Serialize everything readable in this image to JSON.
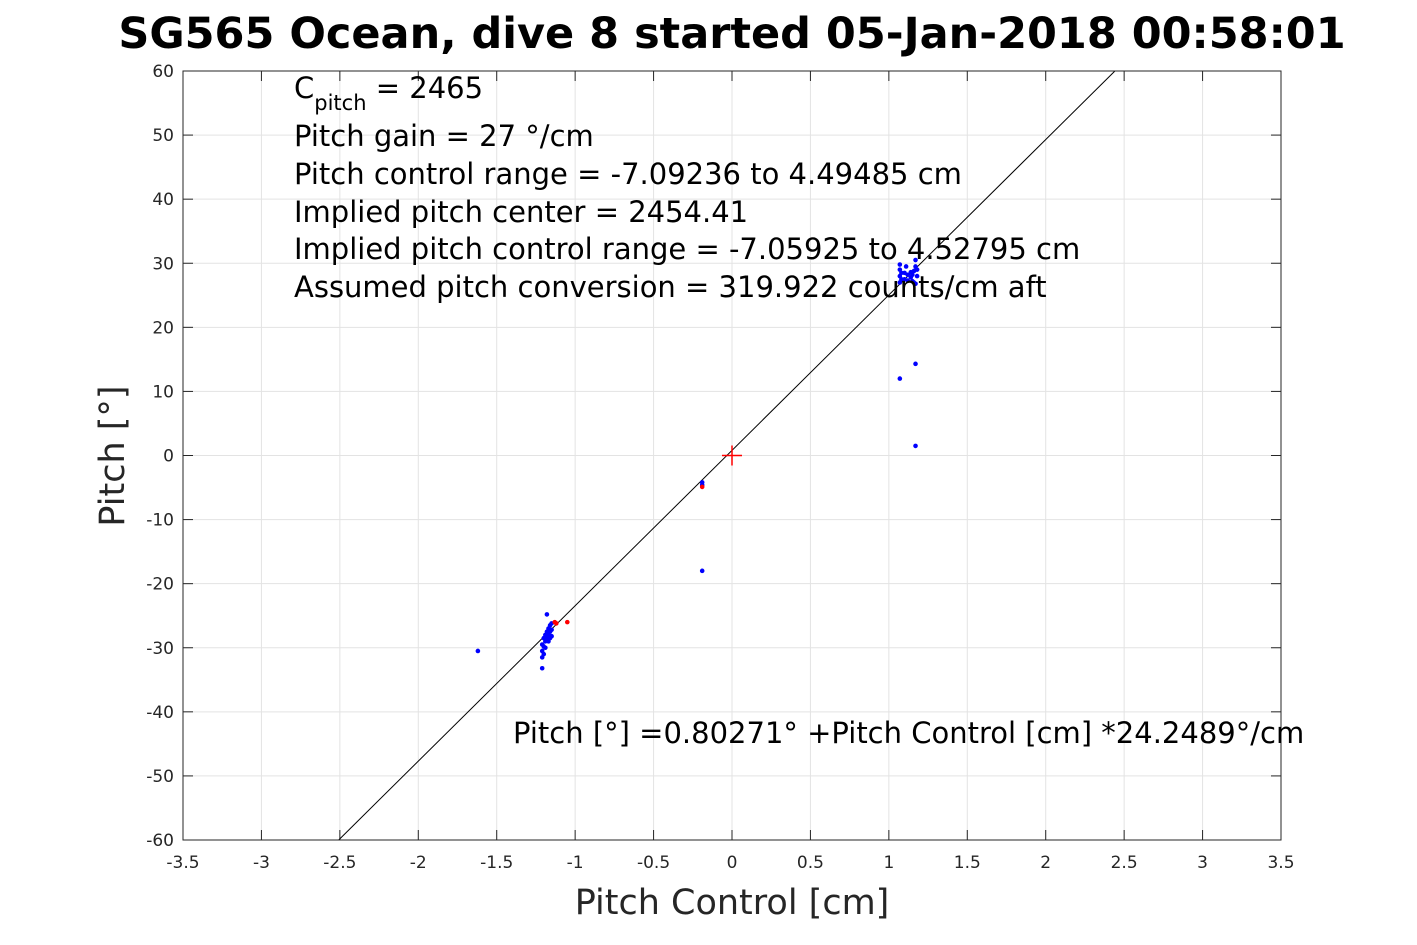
{
  "chart_data": {
    "type": "scatter",
    "title": "SG565 Ocean, dive 8 started 05-Jan-2018 00:58:01",
    "xlabel": "Pitch Control [cm]",
    "ylabel": "Pitch [°]",
    "xlim": [
      -3.5,
      3.5
    ],
    "ylim": [
      -60,
      60
    ],
    "x_ticks": [
      "-3.5",
      "-3",
      "-2.5",
      "-2",
      "-1.5",
      "-1",
      "-0.5",
      "0",
      "0.5",
      "1",
      "1.5",
      "2",
      "2.5",
      "3",
      "3.5"
    ],
    "y_ticks": [
      "-60",
      "-50",
      "-40",
      "-30",
      "-20",
      "-10",
      "0",
      "10",
      "20",
      "30",
      "40",
      "50",
      "60"
    ],
    "grid": true,
    "annotations": {
      "c_pitch_main": "C",
      "c_pitch_sub": "pitch",
      "c_pitch_value": " = 2465",
      "line2": "Pitch gain = 27 °/cm",
      "line3": "Pitch control range = -7.09236 to 4.49485 cm",
      "line4": "Implied pitch center = 2454.41",
      "line5": "Implied pitch control range = -7.05925 to 4.52795 cm",
      "line6": "Assumed pitch conversion = 319.922 counts/cm aft",
      "fit_equation": "Pitch [°] =0.80271° +Pitch Control [cm] *24.2489°/cm"
    },
    "fit_line": {
      "intercept": 0.80271,
      "slope": 24.2489,
      "color": "#000000"
    },
    "center_marker": {
      "x": 0,
      "y": 0,
      "color": "#ff0000"
    },
    "series": [
      {
        "color": "#0000ff",
        "points": [
          [
            -1.62,
            -30.5
          ],
          [
            -1.21,
            -33.2
          ],
          [
            -1.21,
            -31.5
          ],
          [
            -1.21,
            -30.5
          ],
          [
            -1.21,
            -29.5
          ],
          [
            -1.2,
            -28.5
          ],
          [
            -1.2,
            -29.8
          ],
          [
            -1.2,
            -31.0
          ],
          [
            -1.19,
            -28.0
          ],
          [
            -1.19,
            -29.0
          ],
          [
            -1.19,
            -30.0
          ],
          [
            -1.18,
            -27.5
          ],
          [
            -1.18,
            -28.5
          ],
          [
            -1.17,
            -27.0
          ],
          [
            -1.17,
            -28.0
          ],
          [
            -1.17,
            -29.0
          ],
          [
            -1.18,
            -24.8
          ],
          [
            -1.16,
            -26.5
          ],
          [
            -1.16,
            -27.5
          ],
          [
            -1.16,
            -28.5
          ],
          [
            -1.15,
            -26.2
          ],
          [
            -1.15,
            -27.2
          ],
          [
            -1.15,
            -28.2
          ],
          [
            -0.19,
            -18.0
          ],
          [
            -0.19,
            -4.2
          ],
          [
            -0.19,
            -4.6
          ],
          [
            1.07,
            12.0
          ],
          [
            1.17,
            14.3
          ],
          [
            1.17,
            1.5
          ],
          [
            1.07,
            27.0
          ],
          [
            1.07,
            28.0
          ],
          [
            1.07,
            29.0
          ],
          [
            1.07,
            29.8
          ],
          [
            1.08,
            27.5
          ],
          [
            1.08,
            28.5
          ],
          [
            1.1,
            27.5
          ],
          [
            1.1,
            28.5
          ],
          [
            1.11,
            29.5
          ],
          [
            1.12,
            27.3
          ],
          [
            1.12,
            28.2
          ],
          [
            1.14,
            27.8
          ],
          [
            1.14,
            28.6
          ],
          [
            1.15,
            27.2
          ],
          [
            1.15,
            28.2
          ],
          [
            1.16,
            28.8
          ],
          [
            1.16,
            27.0
          ],
          [
            1.17,
            29.5
          ],
          [
            1.17,
            30.5
          ],
          [
            1.17,
            26.8
          ],
          [
            1.18,
            28.0
          ],
          [
            1.18,
            29.0
          ]
        ]
      },
      {
        "color": "#ff0000",
        "points": [
          [
            -1.05,
            -26.0
          ],
          [
            -1.13,
            -26.0
          ],
          [
            -1.12,
            -26.2
          ],
          [
            -0.19,
            -4.9
          ]
        ]
      }
    ]
  }
}
